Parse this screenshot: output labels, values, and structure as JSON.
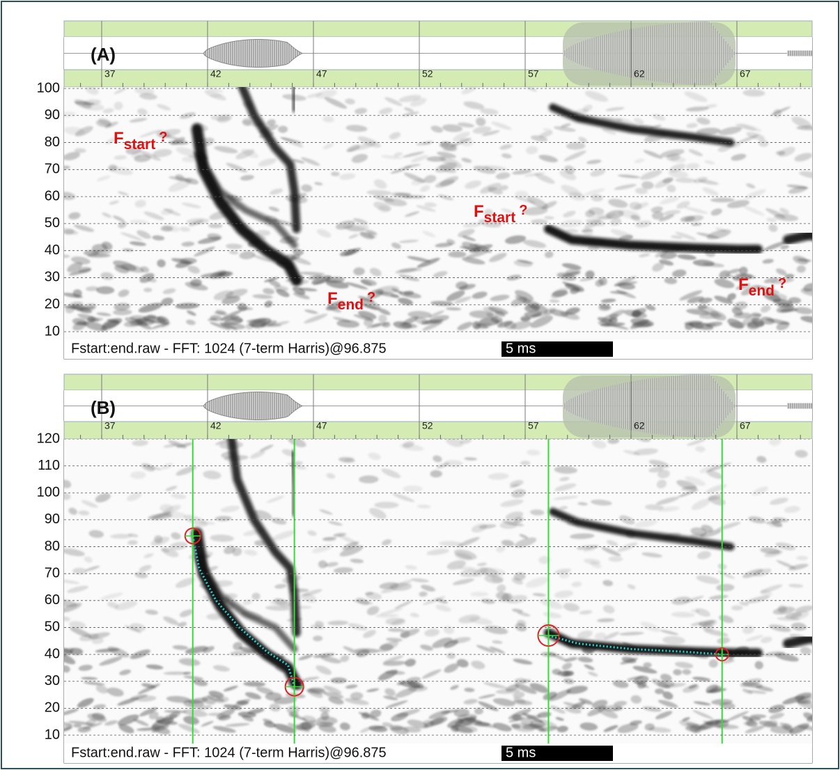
{
  "panels": [
    {
      "label": "(A)",
      "time_ticks": [
        37,
        42,
        47,
        52,
        57,
        62,
        67
      ],
      "freq_ticks": [
        100,
        90,
        80,
        70,
        60,
        50,
        40,
        30,
        20,
        10
      ],
      "annotations": [
        {
          "main": "F",
          "sub": "start",
          "mark": "?"
        },
        {
          "main": "F",
          "sub": "end",
          "mark": "?"
        },
        {
          "main": "F",
          "sub": "start",
          "mark": "?"
        },
        {
          "main": "F",
          "sub": "end",
          "mark": "?"
        }
      ],
      "footer": "Fstart:end.raw - FFT: 1024 (7-term Harris)@96.875",
      "scale_bar": "5 ms"
    },
    {
      "label": "(B)",
      "time_ticks": [
        37,
        42,
        47,
        52,
        57,
        62,
        67
      ],
      "freq_ticks": [
        120,
        110,
        100,
        90,
        80,
        70,
        60,
        50,
        40,
        30,
        20,
        10
      ],
      "annotations": [],
      "footer": "Fstart:end.raw - FFT: 1024 (7-term Harris)@96.875",
      "scale_bar": "5 ms"
    }
  ]
}
